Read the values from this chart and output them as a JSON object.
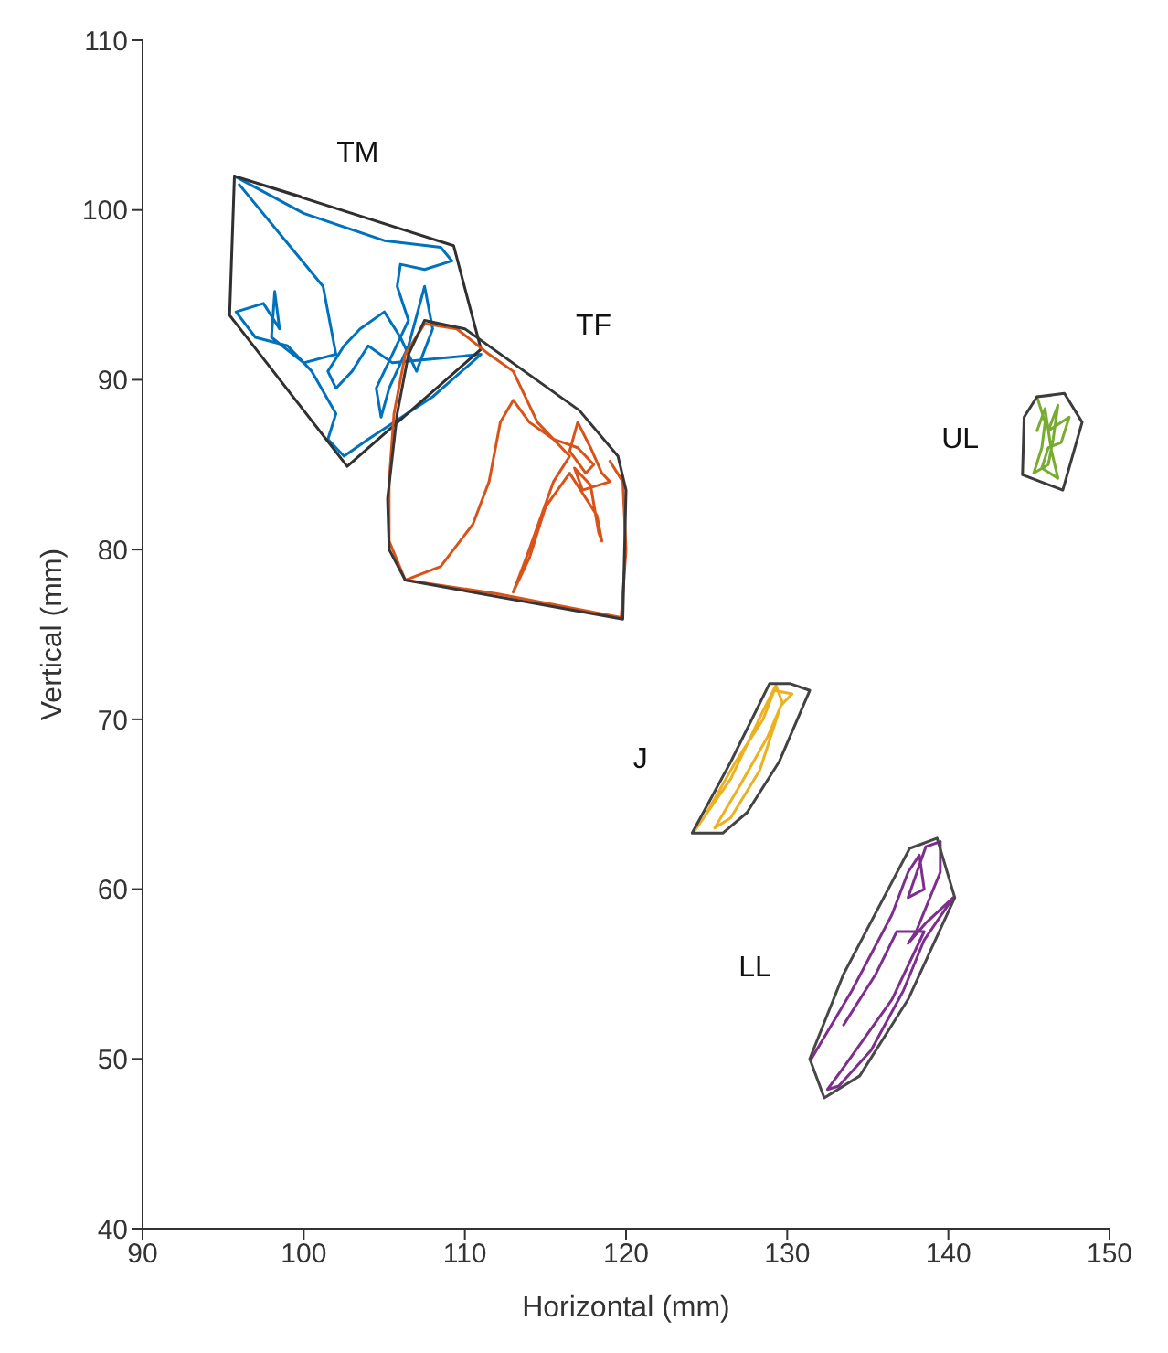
{
  "chart_data": {
    "type": "line",
    "xlabel": "Horizontal (mm)",
    "ylabel": "Vertical (mm)",
    "xlim": [
      90,
      150
    ],
    "ylim": [
      40,
      110
    ],
    "xticks": [
      90,
      100,
      110,
      120,
      130,
      140,
      150
    ],
    "yticks": [
      40,
      50,
      60,
      70,
      80,
      90,
      100,
      110
    ],
    "series": [
      {
        "name": "TM",
        "color": "#0072bd",
        "x": [
          95.7,
          100,
          105,
          108.5,
          109.2,
          107.5,
          106,
          105.8,
          106.5,
          105.5,
          104.5,
          104.8,
          105.3,
          106.5,
          107.5,
          108,
          107,
          106,
          105,
          103.5,
          102.5,
          101.5,
          102,
          103,
          104,
          105.5,
          111,
          108,
          104,
          102.5,
          101.5,
          102,
          100.5,
          99,
          97,
          95.8,
          97.5,
          98.5,
          98.2,
          98,
          100,
          102,
          101.2,
          96
        ],
        "values": [
          102.0,
          99.8,
          98.2,
          97.8,
          97.0,
          96.5,
          96.8,
          95.5,
          93.5,
          91.5,
          89.5,
          87.8,
          89.5,
          92,
          95.5,
          93,
          90.5,
          92.5,
          94,
          93,
          92,
          90.5,
          89.5,
          90.5,
          92,
          91,
          91.5,
          89,
          86.5,
          85.5,
          86.5,
          88,
          90.5,
          92,
          92.5,
          94,
          94.5,
          93,
          95.2,
          92.5,
          91,
          91.5,
          95.5,
          101.5
        ]
      },
      {
        "color": "#303030",
        "x": [
          95.7,
          109.3,
          111.0,
          102.7,
          95.4,
          95.7,
          99.8
        ],
        "values": [
          102.0,
          97.9,
          91.8,
          84.9,
          93.8,
          102.0,
          100.8
        ]
      },
      {
        "name": "TF",
        "color": "#d95319",
        "x": [
          106.3,
          108.5,
          110.5,
          111.5,
          112.2,
          113,
          114,
          115.5,
          117,
          118,
          117.5,
          116.5,
          117,
          117.8,
          118.5,
          119,
          117.3,
          116.8,
          117.8,
          118.3,
          118.5,
          118.2,
          116.5,
          115,
          114,
          113,
          113.8,
          115.5,
          116.5,
          114.5,
          113,
          111.5,
          109.5,
          107.5,
          106.3,
          105.6,
          105.3,
          105.3,
          106.3,
          112,
          119.7,
          120,
          119.8,
          119
        ],
        "values": [
          78.2,
          79,
          81.5,
          84,
          87.5,
          88.8,
          87.5,
          86.5,
          86,
          85,
          84.5,
          85.8,
          87.5,
          86,
          84.5,
          84,
          83.5,
          84.8,
          83.8,
          81,
          80.5,
          82,
          84.5,
          82.5,
          79.5,
          77.5,
          79.5,
          84,
          85.5,
          87.5,
          90.5,
          91.5,
          93.0,
          93.3,
          91.5,
          88,
          84,
          80.5,
          78.2,
          77.4,
          76,
          80,
          84,
          85.2
        ]
      },
      {
        "color": "#363636",
        "x": [
          107.5,
          110,
          117.1,
          119.5,
          120,
          119.8,
          106.3,
          105.3,
          105.2,
          105.8,
          106.5,
          107.5,
          108.8
        ],
        "values": [
          93.5,
          93,
          88.2,
          85.5,
          83.5,
          75.9,
          78.2,
          80,
          83,
          88,
          91.5,
          93.5,
          93.2
        ]
      },
      {
        "name": "UL",
        "color": "#77ac30",
        "x": [
          145.5,
          146,
          145.8,
          145.3,
          146.2,
          146.5,
          146.8,
          146.2,
          147.5,
          147,
          146.2,
          145.8,
          146.8,
          146.4,
          146,
          145.5
        ],
        "values": [
          89,
          87.5,
          86,
          84.5,
          85,
          86.5,
          88.5,
          87,
          87.8,
          86.3,
          86,
          84.8,
          84.2,
          85.8,
          88.3,
          87
        ]
      },
      {
        "color": "#3c3c3c",
        "x": [
          145.5,
          147.2,
          148.3,
          147.1,
          144.6,
          144.7,
          145.5,
          146.4
        ],
        "values": [
          89,
          89.2,
          87.5,
          83.5,
          84.4,
          87.8,
          89,
          89.1
        ]
      },
      {
        "name": "J",
        "color": "#edb120",
        "x": [
          124.3,
          126.5,
          128.5,
          129.3,
          129.7,
          128.8,
          127,
          125.5,
          126.5,
          128.3,
          129.6,
          130.3,
          129.2,
          128.5,
          126.8,
          125
        ],
        "values": [
          63.5,
          66.5,
          70.5,
          72,
          71,
          69,
          66,
          63.6,
          64.2,
          67,
          70.8,
          71.5,
          71.7,
          70,
          67.5,
          64.5
        ]
      },
      {
        "color": "#424242",
        "x": [
          128.9,
          130.2,
          131.4,
          129.5,
          127.5,
          126,
          124.1,
          126.5,
          128.9,
          129.6
        ],
        "values": [
          72.1,
          72.1,
          71.7,
          67.5,
          64.5,
          63.3,
          63.3,
          67.5,
          72.1,
          72.1
        ]
      },
      {
        "name": "LL",
        "color": "#7e2f8e",
        "x": [
          131.5,
          134,
          136.5,
          137.5,
          138.2,
          138.5,
          137.5,
          138.6,
          139.5,
          139.5,
          138,
          137.5,
          138.6,
          140.3,
          138.5,
          137.2,
          135.2,
          133.2,
          132.5,
          133.5,
          136.5,
          138.5,
          136.8,
          135.5,
          133.5
        ],
        "values": [
          50,
          54,
          58.5,
          61,
          62,
          60,
          59.5,
          62.5,
          62.8,
          61,
          57.5,
          56.8,
          58,
          59.5,
          57,
          54,
          50.5,
          48.4,
          48.2,
          49.5,
          53.5,
          57.5,
          57.5,
          55,
          52
        ]
      },
      {
        "color": "#484848",
        "x": [
          137.6,
          139.3,
          140.4,
          137.5,
          134.5,
          132.3,
          131.4,
          133.5,
          137.6,
          138.5
        ],
        "values": [
          62.4,
          63,
          59.5,
          53.5,
          49,
          47.7,
          50,
          55,
          62.4,
          62.7
        ]
      }
    ]
  }
}
